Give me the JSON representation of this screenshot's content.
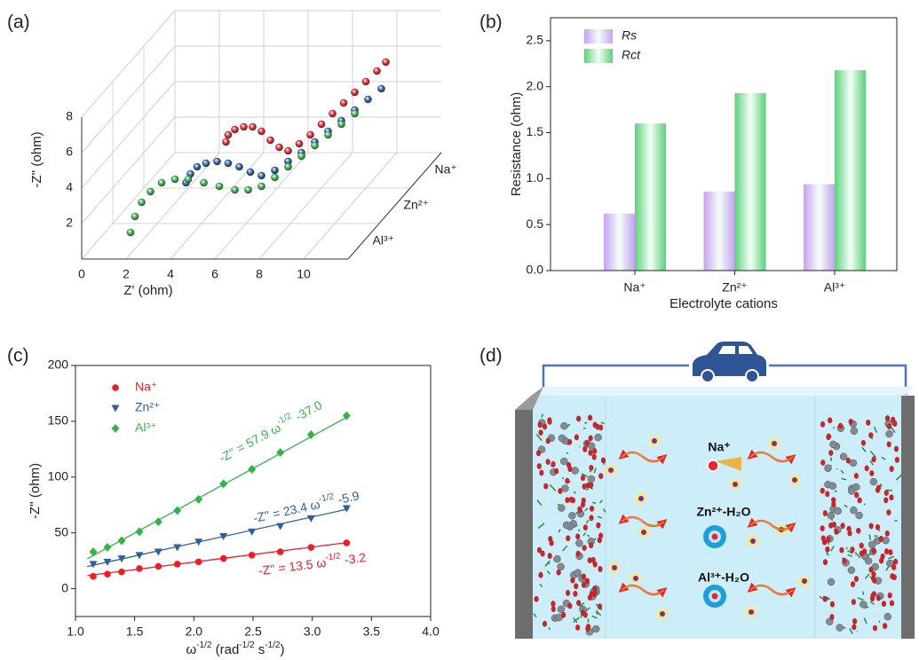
{
  "chart_data": [
    {
      "type": "scatter3d",
      "panel_label": "(a)",
      "x_label": "Z' (ohm)",
      "y_label": "-Z'' (ohm)",
      "categories": [
        "Na⁺",
        "Zn²⁺",
        "Al³⁺"
      ],
      "xlim": [
        0,
        12
      ],
      "xticks": [
        0,
        2,
        4,
        6,
        8,
        10
      ],
      "ylim": [
        0,
        8
      ],
      "yticks": [
        2,
        4,
        6,
        8
      ],
      "grid": true,
      "series": [
        {
          "name": "Na⁺",
          "color": "#d8262b",
          "x": [
            3.0,
            3.1,
            3.4,
            3.8,
            4.2,
            4.6,
            5.0,
            5.4,
            5.8,
            6.3,
            6.8,
            7.3,
            7.8,
            8.3,
            8.8,
            9.3,
            9.8,
            10.2
          ],
          "values": [
            1.6,
            2.0,
            2.3,
            2.45,
            2.45,
            2.2,
            1.7,
            1.3,
            1.1,
            1.5,
            2.0,
            2.6,
            3.2,
            3.8,
            4.4,
            5.0,
            5.6,
            6.1
          ]
        },
        {
          "name": "Zn²⁺",
          "color": "#2c5b9c",
          "x": [
            2.6,
            2.8,
            3.1,
            3.5,
            4.0,
            4.5,
            5.0,
            5.5,
            6.0,
            6.6,
            7.2,
            7.8,
            8.4,
            9.0,
            9.6,
            10.2,
            10.8,
            11.4
          ],
          "values": [
            1.3,
            1.8,
            2.2,
            2.4,
            2.5,
            2.4,
            2.2,
            1.9,
            1.7,
            2.0,
            2.5,
            3.0,
            3.6,
            4.2,
            4.8,
            5.4,
            6.0,
            6.6
          ]
        },
        {
          "name": "Al³⁺",
          "color": "#38a852",
          "x": [
            1.5,
            1.7,
            2.0,
            2.4,
            2.9,
            3.5,
            4.1,
            4.8,
            5.5,
            6.2,
            6.8,
            7.4,
            8.0,
            8.6,
            9.2,
            9.8,
            10.4,
            11.0,
            11.6
          ],
          "values": [
            0.5,
            1.4,
            2.2,
            2.8,
            3.3,
            3.5,
            3.5,
            3.3,
            3.1,
            2.9,
            2.9,
            3.1,
            3.6,
            4.2,
            4.8,
            5.4,
            6.0,
            6.6,
            7.2
          ]
        }
      ]
    },
    {
      "type": "bar",
      "panel_label": "(b)",
      "x_label": "Electrolyte cations",
      "y_label": "Resistance (ohm)",
      "categories": [
        "Na⁺",
        "Zn²⁺",
        "Al³⁺"
      ],
      "ylim": [
        0,
        2.75
      ],
      "yticks": [
        {
          "value": 0,
          "label": "0.0"
        },
        0.5,
        {
          "value": 1,
          "label": "1.0"
        },
        1.5,
        {
          "value": 2,
          "label": "2.0"
        },
        2.5
      ],
      "legend": "upper left",
      "series": [
        {
          "name": "Rs",
          "color": "#c7a1f3",
          "values": [
            0.62,
            0.86,
            0.94
          ]
        },
        {
          "name": "Rct",
          "color": "#5ccf7c",
          "values": [
            1.6,
            1.93,
            2.18
          ]
        }
      ]
    },
    {
      "type": "scatter",
      "panel_label": "(c)",
      "y_label": "-Z'' (ohm)",
      "x_label": [
        {
          "text": "ω"
        },
        {
          "text": "-1/2",
          "sup": true
        },
        {
          "text": " (rad"
        },
        {
          "text": "-1/2",
          "sup": true
        },
        {
          "text": " s"
        },
        {
          "text": "-1/2",
          "sup": true
        },
        {
          "text": ")"
        }
      ],
      "xlim": [
        1.0,
        4.0
      ],
      "xticks": [
        {
          "value": 1,
          "label": "1.0"
        },
        1.5,
        {
          "value": 2,
          "label": "2.0"
        },
        2.5,
        {
          "value": 3,
          "label": "3.0"
        },
        3.5,
        {
          "value": 4,
          "label": "4.0"
        }
      ],
      "ylim": [
        -25,
        200
      ],
      "yticks": [
        0,
        50,
        100,
        150,
        200
      ],
      "legend": "upper left",
      "series": [
        {
          "name": "Na⁺",
          "color": "#ee1c25",
          "marker": "circle",
          "x": [
            1.15,
            1.27,
            1.39,
            1.54,
            1.7,
            1.86,
            2.04,
            2.25,
            2.49,
            2.73,
            2.99,
            3.29
          ],
          "values": [
            11,
            13,
            15,
            18,
            20,
            22,
            24,
            27,
            30,
            33,
            37,
            41
          ],
          "fit": {
            "slope": 13.5,
            "intercept": -3.2,
            "label": [
              {
                "text": "-Z'' = 13.5 ω"
              },
              {
                "text": "-1/2",
                "sup": true
              },
              {
                "text": " -3.2"
              }
            ]
          }
        },
        {
          "name": "Zn²⁺",
          "color": "#2f5f98",
          "marker": "triangle-down",
          "x": [
            1.15,
            1.27,
            1.39,
            1.54,
            1.7,
            1.86,
            2.04,
            2.25,
            2.49,
            2.73,
            2.99,
            3.29
          ],
          "values": [
            22,
            24,
            27,
            30,
            33,
            37,
            42,
            47,
            51,
            56,
            63,
            72
          ],
          "fit": {
            "slope": 23.4,
            "intercept": -5.9,
            "label": [
              {
                "text": "-Z'' = 23.4 ω"
              },
              {
                "text": "-1/2",
                "sup": true
              },
              {
                "text": " -5.9"
              }
            ]
          }
        },
        {
          "name": "Al³⁺",
          "color": "#36b14a",
          "marker": "diamond",
          "x": [
            1.15,
            1.27,
            1.39,
            1.54,
            1.7,
            1.86,
            2.04,
            2.25,
            2.49,
            2.73,
            2.99,
            3.29
          ],
          "values": [
            33,
            37,
            43,
            51,
            60,
            70,
            80,
            94,
            107,
            122,
            138,
            155
          ],
          "fit": {
            "slope": 57.9,
            "intercept": -37.0,
            "label": [
              {
                "text": "-Z'' = 57.9 ω"
              },
              {
                "text": "-1/2",
                "sup": true
              },
              {
                "text": " -37.0"
              }
            ]
          }
        }
      ]
    }
  ],
  "diagram": {
    "panel_label": "(d)",
    "species": [
      "Na⁺",
      "Zn²⁺-H₂O",
      "Al³⁺-H₂O"
    ]
  }
}
